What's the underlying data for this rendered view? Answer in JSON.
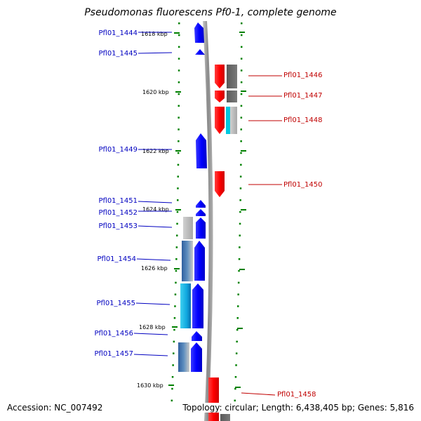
{
  "title": "Pseudomonas fluorescens Pf0-1, complete genome",
  "accession": "Accession: NC_007492",
  "topology": "Topology: circular; Length: 6,438,405 bp; Genes: 5,816",
  "colors": {
    "forward": "#0000ff",
    "reverse": "#ff0000",
    "tick": "#008000",
    "backbone": "#999999"
  },
  "ticks": [
    {
      "label": "1618 kbp"
    },
    {
      "label": "1620 kbp"
    },
    {
      "label": "1622 kbp"
    },
    {
      "label": "1624 kbp"
    },
    {
      "label": "1626 kbp"
    },
    {
      "label": "1628 kbp"
    },
    {
      "label": "1630 kbp"
    }
  ],
  "genes": [
    {
      "name": "Pfl01_1444",
      "strand": "forward"
    },
    {
      "name": "Pfl01_1445",
      "strand": "forward"
    },
    {
      "name": "Pfl01_1446",
      "strand": "reverse"
    },
    {
      "name": "Pfl01_1447",
      "strand": "reverse"
    },
    {
      "name": "Pfl01_1448",
      "strand": "reverse"
    },
    {
      "name": "Pfl01_1449",
      "strand": "forward"
    },
    {
      "name": "Pfl01_1450",
      "strand": "reverse"
    },
    {
      "name": "Pfl01_1451",
      "strand": "forward"
    },
    {
      "name": "Pfl01_1452",
      "strand": "forward"
    },
    {
      "name": "Pfl01_1453",
      "strand": "forward"
    },
    {
      "name": "Pfl01_1454",
      "strand": "forward"
    },
    {
      "name": "Pfl01_1455",
      "strand": "forward"
    },
    {
      "name": "Pfl01_1456",
      "strand": "forward"
    },
    {
      "name": "Pfl01_1457",
      "strand": "forward"
    },
    {
      "name": "Pfl01_1458",
      "strand": "reverse"
    }
  ]
}
